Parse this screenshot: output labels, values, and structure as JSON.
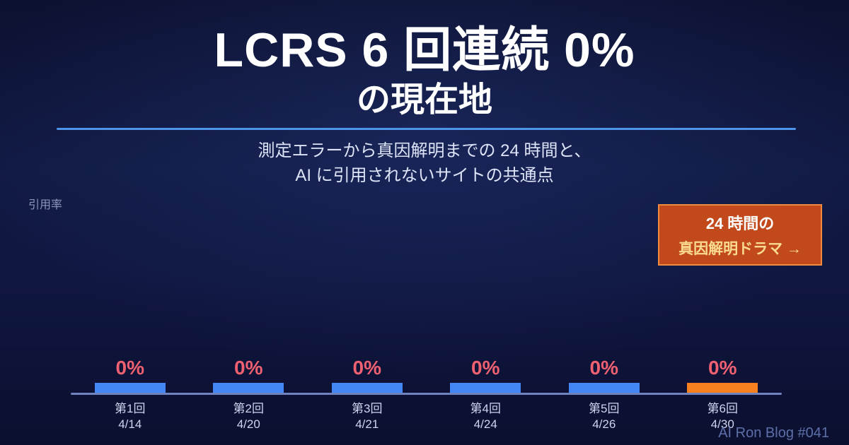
{
  "header": {
    "title_line1": "LCRS 6 回連続 0%",
    "title_line2": "の現在地",
    "description_line1": "測定エラーから真因解明までの 24 時間と、",
    "description_line2": "AI に引用されないサイトの共通点"
  },
  "cta": {
    "line1": "24 時間の",
    "line2": "真因解明ドラマ →"
  },
  "footer": {
    "credit": "AI Ron Blog #041"
  },
  "chart_data": {
    "type": "bar",
    "title": "LCRS 6 回連続 0% の現在地",
    "ylabel": "引用率",
    "categories": [
      "第1回",
      "第2回",
      "第3回",
      "第4回",
      "第5回",
      "第6回"
    ],
    "dates": [
      "4/14",
      "4/20",
      "4/21",
      "4/24",
      "4/26",
      "4/30"
    ],
    "values": [
      0,
      0,
      0,
      0,
      0,
      0
    ],
    "value_labels": [
      "0%",
      "0%",
      "0%",
      "0%",
      "0%",
      "0%"
    ],
    "unit": "%",
    "ylim": [
      0,
      100
    ],
    "grid": false,
    "legend": false,
    "bar_colors": [
      "#4486f4",
      "#4486f4",
      "#4486f4",
      "#4486f4",
      "#4486f4",
      "#f8801f"
    ],
    "highlight_index": 5
  },
  "colors": {
    "background": "#101741",
    "divider": "#4e94e8",
    "value_label": "#ef6071",
    "bar_default": "#4486f4",
    "bar_highlight": "#f8801f",
    "cta_background": "#c2491b",
    "cta_border": "#ef8b3f",
    "cta_text_secondary": "#f9da8e",
    "axis_line": "#7082bf",
    "tick_label": "#ccd4ee",
    "footer_text": "#5d6fa8"
  }
}
